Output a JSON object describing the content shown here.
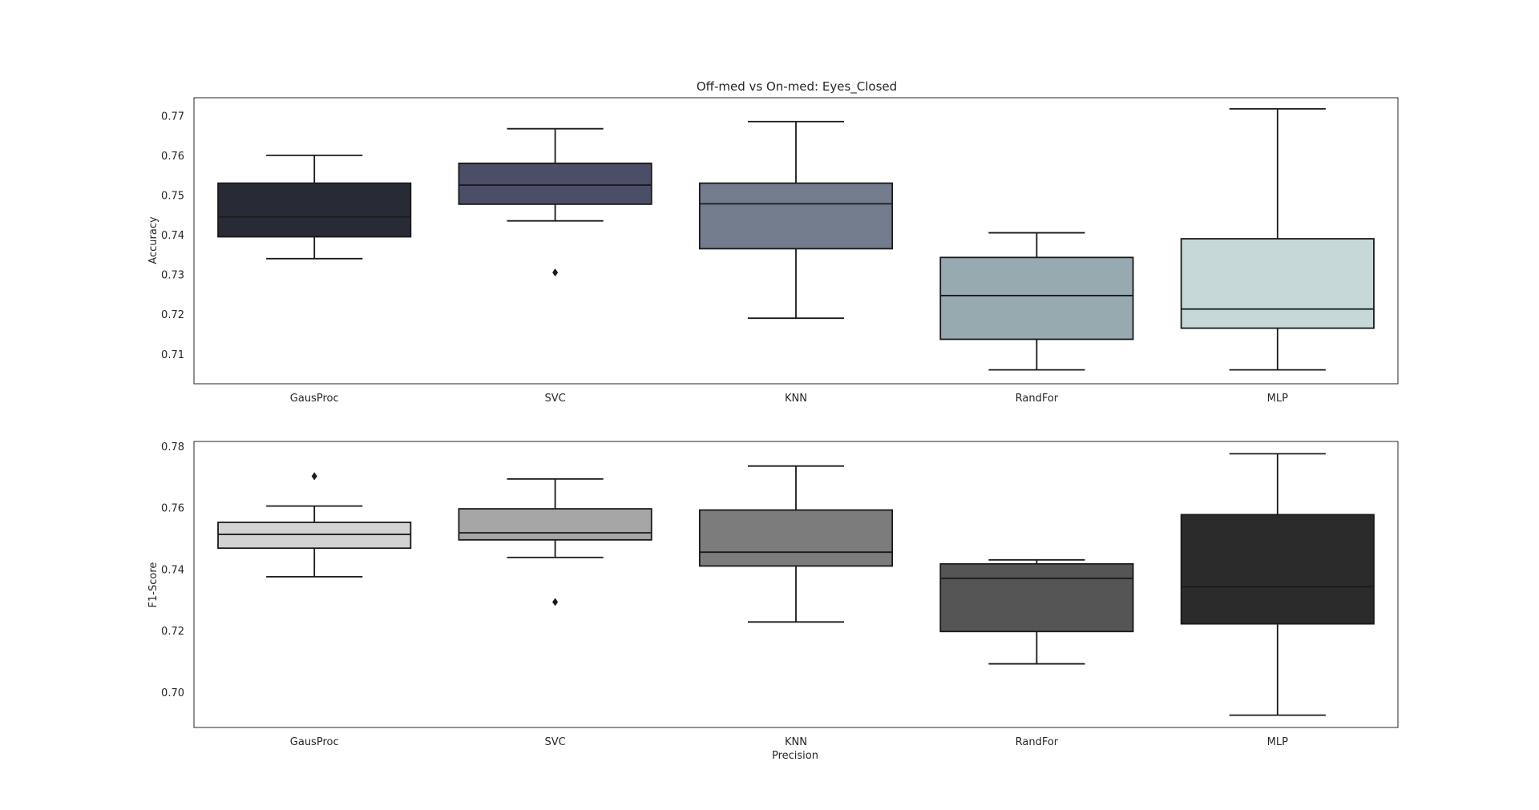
{
  "figure": {
    "title": "Off-med vs On-med: Eyes_Closed"
  },
  "chart_data": [
    {
      "type": "box",
      "title": "Off-med vs On-med: Eyes_Closed",
      "xlabel": "",
      "ylabel": "Accuracy",
      "ylim": [
        0.7025,
        0.7745
      ],
      "yticks": [
        0.71,
        0.72,
        0.73,
        0.74,
        0.75,
        0.76,
        0.77
      ],
      "ytick_labels": [
        "0.71",
        "0.72",
        "0.73",
        "0.74",
        "0.75",
        "0.76",
        "0.77"
      ],
      "grid": false,
      "categories": [
        "GausProc",
        "SVC",
        "KNN",
        "RandFor",
        "MLP"
      ],
      "boxes": [
        {
          "category": "GausProc",
          "whislo": 0.734,
          "q1": 0.7395,
          "med": 0.7445,
          "q3": 0.753,
          "whishi": 0.76,
          "fliers": [],
          "color": "#282a36"
        },
        {
          "category": "SVC",
          "whislo": 0.7435,
          "q1": 0.7477,
          "med": 0.7525,
          "q3": 0.758,
          "whishi": 0.7667,
          "fliers": [
            0.7305
          ],
          "color": "#4c4d66"
        },
        {
          "category": "KNN",
          "whislo": 0.719,
          "q1": 0.7365,
          "med": 0.7478,
          "q3": 0.753,
          "whishi": 0.7685,
          "fliers": [],
          "color": "#737c8c"
        },
        {
          "category": "RandFor",
          "whislo": 0.706,
          "q1": 0.7137,
          "med": 0.7247,
          "q3": 0.7343,
          "whishi": 0.7405,
          "fliers": [],
          "color": "#97aaaf"
        },
        {
          "category": "MLP",
          "whislo": 0.706,
          "q1": 0.7165,
          "med": 0.7213,
          "q3": 0.739,
          "whishi": 0.7717,
          "fliers": [],
          "color": "#c6d8d8"
        }
      ]
    },
    {
      "type": "box",
      "title": "",
      "xlabel": "Precision",
      "ylabel": "F1-Score",
      "ylim": [
        0.6885,
        0.7815
      ],
      "yticks": [
        0.7,
        0.72,
        0.74,
        0.76,
        0.78
      ],
      "ytick_labels": [
        "0.70",
        "0.72",
        "0.74",
        "0.76",
        "0.78"
      ],
      "grid": false,
      "categories": [
        "GausProc",
        "SVC",
        "KNN",
        "RandFor",
        "MLP"
      ],
      "boxes": [
        {
          "category": "GausProc",
          "whislo": 0.7375,
          "q1": 0.7468,
          "med": 0.7513,
          "q3": 0.7552,
          "whishi": 0.7605,
          "fliers": [
            0.7702
          ],
          "color": "#d3d3d3"
        },
        {
          "category": "SVC",
          "whislo": 0.7438,
          "q1": 0.7495,
          "med": 0.7518,
          "q3": 0.7596,
          "whishi": 0.7693,
          "fliers": [
            0.7293
          ],
          "color": "#a6a6a6"
        },
        {
          "category": "KNN",
          "whislo": 0.7228,
          "q1": 0.741,
          "med": 0.7455,
          "q3": 0.7592,
          "whishi": 0.7735,
          "fliers": [],
          "color": "#7c7c7c"
        },
        {
          "category": "RandFor",
          "whislo": 0.7092,
          "q1": 0.7197,
          "med": 0.737,
          "q3": 0.7417,
          "whishi": 0.743,
          "fliers": [],
          "color": "#555555"
        },
        {
          "category": "MLP",
          "whislo": 0.6925,
          "q1": 0.7222,
          "med": 0.7343,
          "q3": 0.7577,
          "whishi": 0.7775,
          "fliers": [],
          "color": "#2b2b2b"
        }
      ]
    }
  ]
}
